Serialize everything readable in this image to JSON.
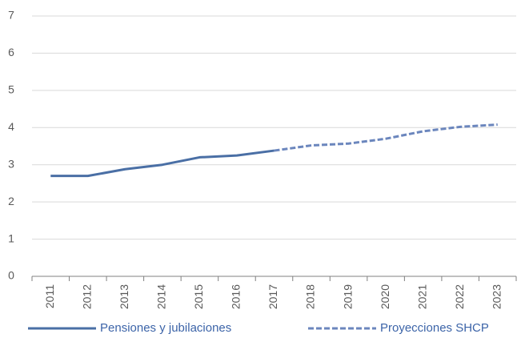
{
  "chart_data": {
    "type": "line",
    "categories": [
      "2011",
      "2012",
      "2013",
      "2014",
      "2015",
      "2016",
      "2017",
      "2018",
      "2019",
      "2020",
      "2021",
      "2022",
      "2023"
    ],
    "series": [
      {
        "name": "Pensiones y jubilaciones",
        "color": "#4a6fa5",
        "dashed": false,
        "values": [
          2.7,
          2.7,
          2.88,
          3.0,
          3.2,
          3.25,
          3.38,
          null,
          null,
          null,
          null,
          null,
          null
        ]
      },
      {
        "name": "Proyecciones SHCP",
        "color": "#6b86bd",
        "dashed": true,
        "values": [
          null,
          null,
          null,
          null,
          null,
          null,
          3.38,
          3.52,
          3.57,
          3.7,
          3.9,
          4.02,
          4.08
        ]
      }
    ],
    "ylim": [
      0,
      7
    ],
    "yticks": [
      0,
      1,
      2,
      3,
      4,
      5,
      6,
      7
    ],
    "grid": true,
    "legend": "bottom"
  }
}
